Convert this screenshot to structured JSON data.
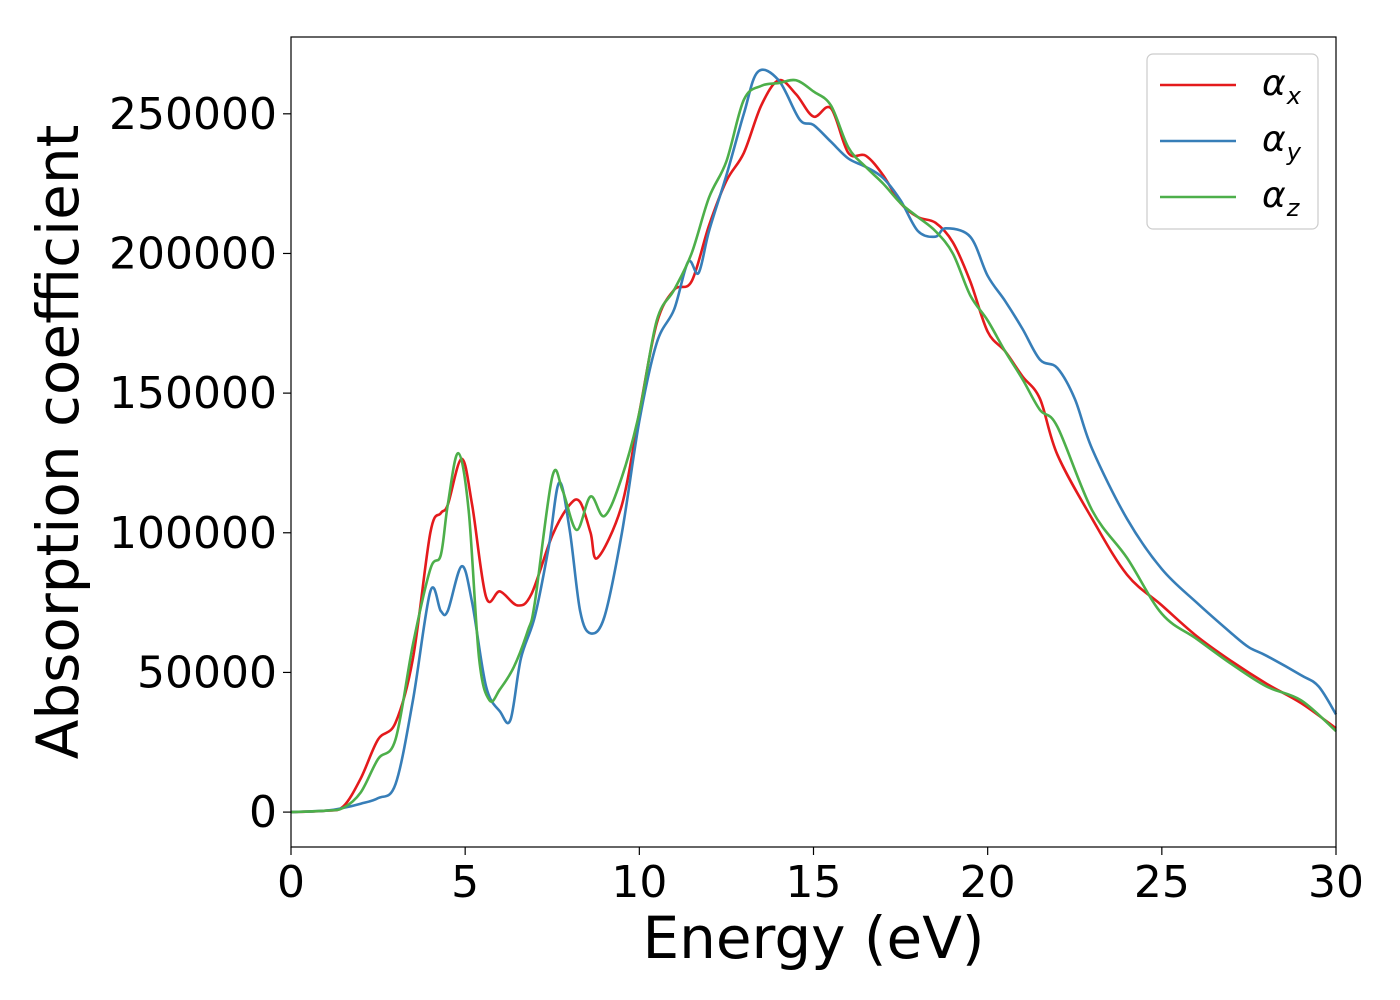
{
  "chart_data": {
    "type": "line",
    "title": "",
    "xlabel": "Energy (eV)",
    "ylabel": "Absorption coefficient",
    "xlim": [
      0,
      30
    ],
    "ylim": [
      -12500,
      277500
    ],
    "xticks": [
      0,
      5,
      10,
      15,
      20,
      25,
      30
    ],
    "yticks": [
      0,
      50000,
      100000,
      150000,
      200000,
      250000
    ],
    "grid": false,
    "legend_position": "top-right",
    "series": [
      {
        "name": "α",
        "subscript": "x",
        "color": "#e41a1c",
        "points": [
          [
            0,
            0
          ],
          [
            1,
            500
          ],
          [
            1.5,
            2000
          ],
          [
            2,
            12000
          ],
          [
            2.5,
            26000
          ],
          [
            3,
            32000
          ],
          [
            3.5,
            55000
          ],
          [
            4,
            100000
          ],
          [
            4.3,
            107000
          ],
          [
            4.5,
            110000
          ],
          [
            4.9,
            126500
          ],
          [
            5.2,
            110000
          ],
          [
            5.6,
            77000
          ],
          [
            6,
            79000
          ],
          [
            6.5,
            74000
          ],
          [
            6.9,
            78000
          ],
          [
            7.5,
            99000
          ],
          [
            8,
            110000
          ],
          [
            8.3,
            111000
          ],
          [
            8.6,
            100000
          ],
          [
            8.8,
            91000
          ],
          [
            9.5,
            110000
          ],
          [
            10,
            143000
          ],
          [
            10.5,
            175000
          ],
          [
            11,
            187000
          ],
          [
            11.5,
            190000
          ],
          [
            12,
            210000
          ],
          [
            12.5,
            226000
          ],
          [
            13,
            236000
          ],
          [
            13.5,
            253000
          ],
          [
            14,
            262000
          ],
          [
            14.5,
            257000
          ],
          [
            15,
            249000
          ],
          [
            15.5,
            252000
          ],
          [
            16,
            236000
          ],
          [
            16.5,
            235000
          ],
          [
            17,
            228000
          ],
          [
            17.5,
            218000
          ],
          [
            18,
            213000
          ],
          [
            18.5,
            211000
          ],
          [
            19,
            204000
          ],
          [
            19.5,
            190000
          ],
          [
            20,
            172000
          ],
          [
            20.5,
            165000
          ],
          [
            21,
            156000
          ],
          [
            21.5,
            148000
          ],
          [
            22,
            128000
          ],
          [
            23,
            105000
          ],
          [
            24,
            85000
          ],
          [
            25,
            74000
          ],
          [
            26,
            63000
          ],
          [
            27,
            54000
          ],
          [
            28,
            46000
          ],
          [
            29,
            39000
          ],
          [
            30,
            30000
          ]
        ]
      },
      {
        "name": "α",
        "subscript": "y",
        "color": "#377eb8",
        "points": [
          [
            0,
            0
          ],
          [
            1,
            500
          ],
          [
            1.5,
            1500
          ],
          [
            2,
            3000
          ],
          [
            2.5,
            5000
          ],
          [
            3,
            10000
          ],
          [
            3.5,
            40000
          ],
          [
            4,
            79000
          ],
          [
            4.3,
            72000
          ],
          [
            4.5,
            72000
          ],
          [
            4.9,
            88000
          ],
          [
            5.2,
            75000
          ],
          [
            5.6,
            45000
          ],
          [
            6,
            36000
          ],
          [
            6.3,
            33000
          ],
          [
            6.6,
            55000
          ],
          [
            7,
            70000
          ],
          [
            7.4,
            95000
          ],
          [
            7.7,
            118000
          ],
          [
            8,
            101000
          ],
          [
            8.3,
            72000
          ],
          [
            8.6,
            64000
          ],
          [
            9,
            70000
          ],
          [
            9.5,
            100000
          ],
          [
            10,
            140000
          ],
          [
            10.5,
            168000
          ],
          [
            11,
            180000
          ],
          [
            11.4,
            197000
          ],
          [
            11.7,
            193000
          ],
          [
            12,
            208000
          ],
          [
            12.5,
            228000
          ],
          [
            13,
            250000
          ],
          [
            13.4,
            265000
          ],
          [
            14,
            262000
          ],
          [
            14.6,
            248000
          ],
          [
            15,
            246000
          ],
          [
            15.5,
            240000
          ],
          [
            16,
            234000
          ],
          [
            16.5,
            231000
          ],
          [
            17,
            227000
          ],
          [
            17.5,
            219000
          ],
          [
            18,
            208000
          ],
          [
            18.5,
            206000
          ],
          [
            18.8,
            209000
          ],
          [
            19.5,
            206000
          ],
          [
            20,
            192000
          ],
          [
            20.5,
            183000
          ],
          [
            21,
            173000
          ],
          [
            21.5,
            162000
          ],
          [
            22,
            159000
          ],
          [
            22.5,
            148000
          ],
          [
            23,
            130000
          ],
          [
            24,
            105000
          ],
          [
            25,
            87000
          ],
          [
            26,
            75000
          ],
          [
            27,
            64000
          ],
          [
            27.5,
            59000
          ],
          [
            28,
            56000
          ],
          [
            29,
            49000
          ],
          [
            29.5,
            45000
          ],
          [
            30,
            35000
          ]
        ]
      },
      {
        "name": "α",
        "subscript": "z",
        "color": "#4daf4a",
        "points": [
          [
            0,
            0
          ],
          [
            1,
            500
          ],
          [
            1.5,
            1500
          ],
          [
            2,
            7000
          ],
          [
            2.5,
            19000
          ],
          [
            3,
            26000
          ],
          [
            3.5,
            60000
          ],
          [
            4,
            87000
          ],
          [
            4.3,
            92000
          ],
          [
            4.5,
            110000
          ],
          [
            4.8,
            128500
          ],
          [
            5.1,
            108000
          ],
          [
            5.4,
            55000
          ],
          [
            5.7,
            40000
          ],
          [
            6,
            44000
          ],
          [
            6.4,
            52000
          ],
          [
            6.8,
            65000
          ],
          [
            7,
            75000
          ],
          [
            7.5,
            120000
          ],
          [
            7.8,
            115000
          ],
          [
            8.2,
            101000
          ],
          [
            8.6,
            113000
          ],
          [
            9,
            106000
          ],
          [
            9.5,
            120000
          ],
          [
            10,
            143000
          ],
          [
            10.5,
            176000
          ],
          [
            11,
            187000
          ],
          [
            11.5,
            200000
          ],
          [
            12,
            220000
          ],
          [
            12.5,
            233000
          ],
          [
            13,
            255000
          ],
          [
            13.5,
            260000
          ],
          [
            14,
            261000
          ],
          [
            14.5,
            262000
          ],
          [
            15,
            258000
          ],
          [
            15.5,
            253000
          ],
          [
            16,
            238000
          ],
          [
            16.5,
            231000
          ],
          [
            17,
            225000
          ],
          [
            17.5,
            218000
          ],
          [
            18,
            213000
          ],
          [
            18.5,
            208000
          ],
          [
            19,
            200000
          ],
          [
            19.5,
            185000
          ],
          [
            20,
            176000
          ],
          [
            20.5,
            165000
          ],
          [
            21,
            155000
          ],
          [
            21.5,
            144000
          ],
          [
            22,
            138000
          ],
          [
            23,
            108000
          ],
          [
            24,
            91000
          ],
          [
            25,
            71000
          ],
          [
            26,
            62000
          ],
          [
            27,
            53000
          ],
          [
            28,
            45000
          ],
          [
            29,
            40000
          ],
          [
            30,
            29000
          ]
        ]
      }
    ]
  }
}
